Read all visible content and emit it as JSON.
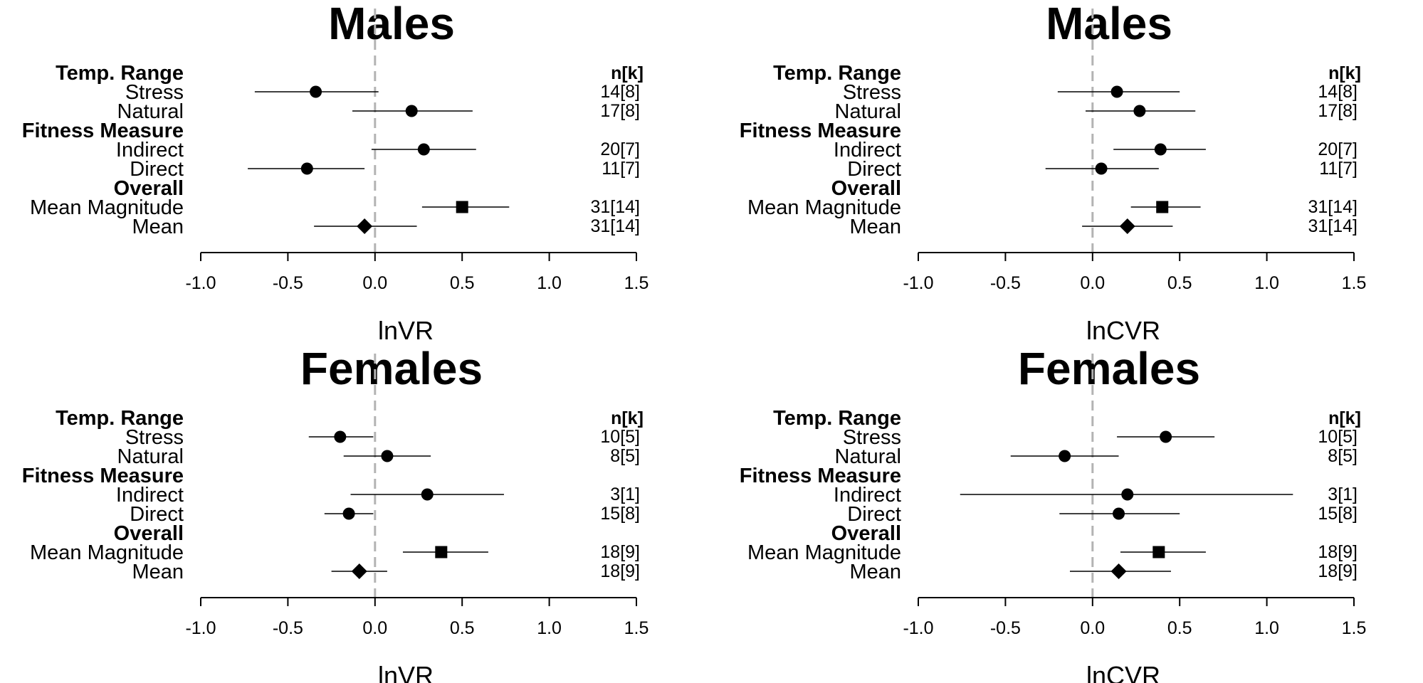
{
  "chart_data": [
    {
      "type": "forest",
      "title": "Males",
      "xlabel": "lnVR",
      "xlim": [
        -1.0,
        1.5
      ],
      "xticks": [
        "-1.0",
        "-0.5",
        "0.0",
        "0.5",
        "1.0",
        "1.5"
      ],
      "n_header": "n[k]",
      "reference_line": 0,
      "rows": [
        {
          "label": "Temp. Range",
          "header": true
        },
        {
          "label": "Stress",
          "est": -0.34,
          "lo": -0.69,
          "hi": 0.02,
          "n": "14[8]",
          "marker": "circle"
        },
        {
          "label": "Natural",
          "est": 0.21,
          "lo": -0.13,
          "hi": 0.56,
          "n": "17[8]",
          "marker": "circle"
        },
        {
          "label": "Fitness Measure",
          "header": true
        },
        {
          "label": "Indirect",
          "est": 0.28,
          "lo": -0.02,
          "hi": 0.58,
          "n": "20[7]",
          "marker": "circle"
        },
        {
          "label": "Direct",
          "est": -0.39,
          "lo": -0.73,
          "hi": -0.06,
          "n": "11[7]",
          "marker": "circle"
        },
        {
          "label": "Overall",
          "header": true
        },
        {
          "label": "Mean Magnitude",
          "est": 0.5,
          "lo": 0.27,
          "hi": 0.77,
          "n": "31[14]",
          "marker": "square"
        },
        {
          "label": "Mean",
          "est": -0.06,
          "lo": -0.35,
          "hi": 0.24,
          "n": "31[14]",
          "marker": "diamond"
        }
      ]
    },
    {
      "type": "forest",
      "title": "Males",
      "xlabel": "lnCVR",
      "xlim": [
        -1.0,
        1.5
      ],
      "xticks": [
        "-1.0",
        "-0.5",
        "0.0",
        "0.5",
        "1.0",
        "1.5"
      ],
      "n_header": "n[k]",
      "reference_line": 0,
      "rows": [
        {
          "label": "Temp. Range",
          "header": true
        },
        {
          "label": "Stress",
          "est": 0.14,
          "lo": -0.2,
          "hi": 0.5,
          "n": "14[8]",
          "marker": "circle"
        },
        {
          "label": "Natural",
          "est": 0.27,
          "lo": -0.04,
          "hi": 0.59,
          "n": "17[8]",
          "marker": "circle"
        },
        {
          "label": "Fitness Measure",
          "header": true
        },
        {
          "label": "Indirect",
          "est": 0.39,
          "lo": 0.12,
          "hi": 0.65,
          "n": "20[7]",
          "marker": "circle"
        },
        {
          "label": "Direct",
          "est": 0.05,
          "lo": -0.27,
          "hi": 0.38,
          "n": "11[7]",
          "marker": "circle"
        },
        {
          "label": "Overall",
          "header": true
        },
        {
          "label": "Mean Magnitude",
          "est": 0.4,
          "lo": 0.22,
          "hi": 0.62,
          "n": "31[14]",
          "marker": "square"
        },
        {
          "label": "Mean",
          "est": 0.2,
          "lo": -0.06,
          "hi": 0.46,
          "n": "31[14]",
          "marker": "diamond"
        }
      ]
    },
    {
      "type": "forest",
      "title": "Females",
      "xlabel": "lnVR",
      "xlim": [
        -1.0,
        1.5
      ],
      "xticks": [
        "-1.0",
        "-0.5",
        "0.0",
        "0.5",
        "1.0",
        "1.5"
      ],
      "n_header": "n[k]",
      "reference_line": 0,
      "rows": [
        {
          "label": "Temp. Range",
          "header": true
        },
        {
          "label": "Stress",
          "est": -0.2,
          "lo": -0.38,
          "hi": -0.01,
          "n": "10[5]",
          "marker": "circle"
        },
        {
          "label": "Natural",
          "est": 0.07,
          "lo": -0.18,
          "hi": 0.32,
          "n": "8[5]",
          "marker": "circle"
        },
        {
          "label": "Fitness Measure",
          "header": true
        },
        {
          "label": "Indirect",
          "est": 0.3,
          "lo": -0.14,
          "hi": 0.74,
          "n": "3[1]",
          "marker": "circle"
        },
        {
          "label": "Direct",
          "est": -0.15,
          "lo": -0.29,
          "hi": -0.01,
          "n": "15[8]",
          "marker": "circle"
        },
        {
          "label": "Overall",
          "header": true
        },
        {
          "label": "Mean Magnitude",
          "est": 0.38,
          "lo": 0.16,
          "hi": 0.65,
          "n": "18[9]",
          "marker": "square"
        },
        {
          "label": "Mean",
          "est": -0.09,
          "lo": -0.25,
          "hi": 0.07,
          "n": "18[9]",
          "marker": "diamond"
        }
      ]
    },
    {
      "type": "forest",
      "title": "Females",
      "xlabel": "lnCVR",
      "xlim": [
        -1.0,
        1.5
      ],
      "xticks": [
        "-1.0",
        "-0.5",
        "0.0",
        "0.5",
        "1.0",
        "1.5"
      ],
      "n_header": "n[k]",
      "reference_line": 0,
      "rows": [
        {
          "label": "Temp. Range",
          "header": true
        },
        {
          "label": "Stress",
          "est": 0.42,
          "lo": 0.14,
          "hi": 0.7,
          "n": "10[5]",
          "marker": "circle"
        },
        {
          "label": "Natural",
          "est": -0.16,
          "lo": -0.47,
          "hi": 0.15,
          "n": "8[5]",
          "marker": "circle"
        },
        {
          "label": "Fitness Measure",
          "header": true
        },
        {
          "label": "Indirect",
          "est": 0.2,
          "lo": -0.76,
          "hi": 1.15,
          "n": "3[1]",
          "marker": "circle"
        },
        {
          "label": "Direct",
          "est": 0.15,
          "lo": -0.19,
          "hi": 0.5,
          "n": "15[8]",
          "marker": "circle"
        },
        {
          "label": "Overall",
          "header": true
        },
        {
          "label": "Mean Magnitude",
          "est": 0.38,
          "lo": 0.16,
          "hi": 0.65,
          "n": "18[9]",
          "marker": "square"
        },
        {
          "label": "Mean",
          "est": 0.15,
          "lo": -0.13,
          "hi": 0.45,
          "n": "18[9]",
          "marker": "diamond"
        }
      ]
    }
  ],
  "colors": {
    "ink": "#000000",
    "reference_line": "#b3b3b3"
  }
}
